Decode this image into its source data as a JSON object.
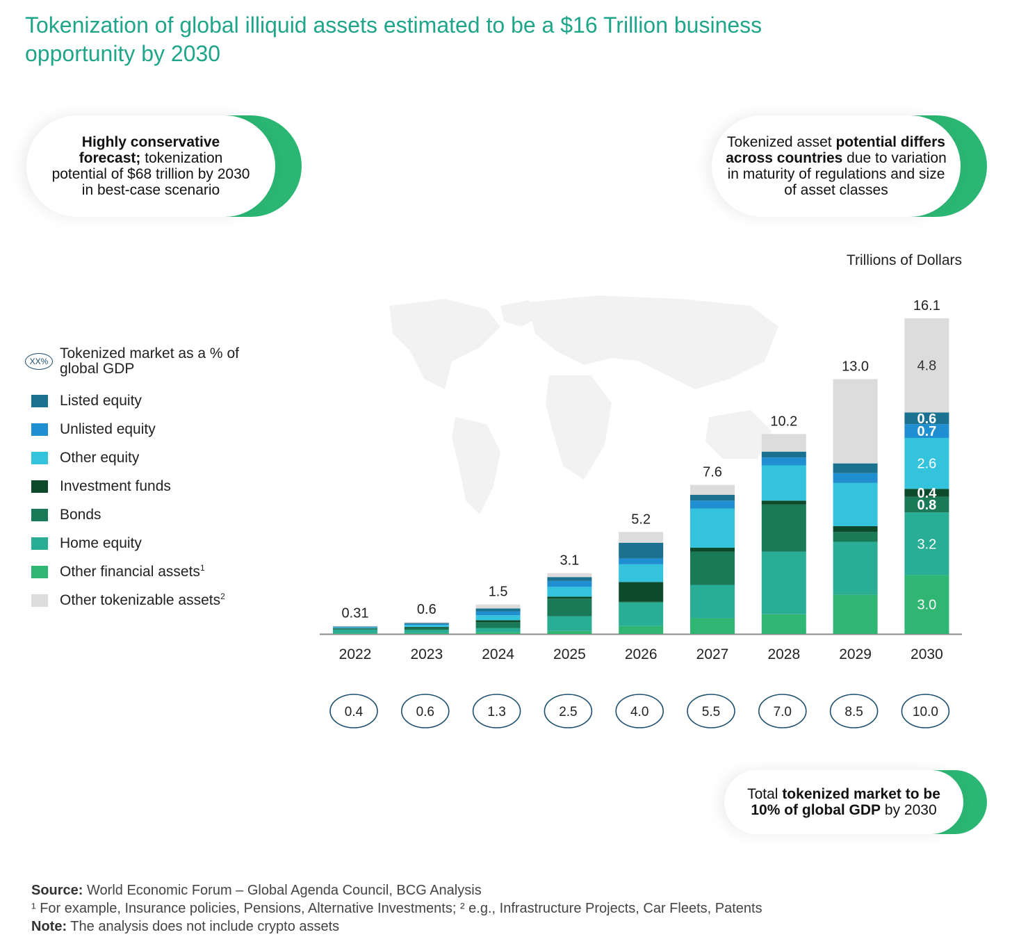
{
  "title": "Tokenization of global illiquid assets estimated to be a $16 Trillion business opportunity by 2030",
  "callouts": {
    "left": {
      "bold": "Highly conservative forecast;",
      "rest": " tokenization potential of $68 trillion by 2030 in best-case scenario"
    },
    "right": {
      "part1": "Tokenized asset ",
      "bold1": "potential differs across countries",
      "part2": " due to variation in maturity of regulations and size of asset classes"
    },
    "bottom": {
      "part1": "Total ",
      "bold1": "tokenized market to be 10% of global GDP",
      "part2": " by 2030"
    }
  },
  "legend": {
    "gdp_oval": "XX%",
    "gdp_label": "Tokenized market as a % of global GDP",
    "items": [
      {
        "label": "Listed equity",
        "sup": "",
        "color": "#1b7290"
      },
      {
        "label": "Unlisted equity",
        "sup": "",
        "color": "#1f8fd1"
      },
      {
        "label": "Other equity",
        "sup": "",
        "color": "#34c3dd"
      },
      {
        "label": "Investment funds",
        "sup": "",
        "color": "#0d4a2b"
      },
      {
        "label": "Bonds",
        "sup": "",
        "color": "#1a7a57"
      },
      {
        "label": "Home equity",
        "sup": "",
        "color": "#2aad95"
      },
      {
        "label": "Other financial assets",
        "sup": "1",
        "color": "#2fb673"
      },
      {
        "label": "Other tokenizable assets",
        "sup": "2",
        "color": "#dcdcdc"
      }
    ]
  },
  "unit_label": "Trillions of Dollars",
  "chart_data": {
    "type": "bar",
    "stacked": true,
    "categories": [
      "2022",
      "2023",
      "2024",
      "2025",
      "2026",
      "2027",
      "2028",
      "2029",
      "2030"
    ],
    "totals": [
      0.31,
      0.6,
      1.5,
      3.1,
      5.2,
      7.6,
      10.2,
      13.0,
      16.1
    ],
    "total_labels": [
      "0.31",
      "0.6",
      "1.5",
      "3.1",
      "5.2",
      "7.6",
      "10.2",
      "13.0",
      "16.1"
    ],
    "gdp_percent": [
      "0.4",
      "0.6",
      "1.3",
      "2.5",
      "4.0",
      "5.5",
      "7.0",
      "8.5",
      "10.0"
    ],
    "series": [
      {
        "name": "Other financial assets",
        "color": "#2fb673",
        "values": [
          0.02,
          0.05,
          0.1,
          0.15,
          0.4,
          0.8,
          1.0,
          2.0,
          3.0
        ]
      },
      {
        "name": "Home equity",
        "color": "#2aad95",
        "values": [
          0.2,
          0.15,
          0.2,
          0.75,
          1.2,
          1.7,
          3.2,
          2.7,
          3.2
        ]
      },
      {
        "name": "Bonds",
        "color": "#1a7a57",
        "values": [
          0.03,
          0.1,
          0.3,
          0.9,
          0.05,
          1.7,
          2.4,
          0.5,
          0.8
        ]
      },
      {
        "name": "Investment funds",
        "color": "#0d4a2b",
        "values": [
          0.01,
          0.05,
          0.1,
          0.1,
          1.0,
          0.2,
          0.2,
          0.3,
          0.4
        ]
      },
      {
        "name": "Other equity",
        "color": "#34c3dd",
        "values": [
          0.03,
          0.1,
          0.25,
          0.5,
          0.9,
          2.0,
          1.8,
          2.2,
          2.6
        ]
      },
      {
        "name": "Unlisted equity",
        "color": "#1f8fd1",
        "values": [
          0.01,
          0.05,
          0.2,
          0.3,
          0.3,
          0.4,
          0.4,
          0.5,
          0.7
        ]
      },
      {
        "name": "Listed equity",
        "color": "#1b7290",
        "values": [
          0.005,
          0.05,
          0.15,
          0.2,
          0.8,
          0.3,
          0.3,
          0.5,
          0.6
        ]
      },
      {
        "name": "Other tokenizable assets",
        "color": "#dcdcdc",
        "values": [
          0.005,
          0.05,
          0.2,
          0.2,
          0.55,
          0.5,
          0.9,
          4.3,
          4.8
        ]
      }
    ],
    "segment_labels_2030": [
      {
        "series": "Other financial assets",
        "label": "3.0"
      },
      {
        "series": "Home equity",
        "label": "3.2"
      },
      {
        "series": "Bonds",
        "label": "0.8"
      },
      {
        "series": "Investment funds",
        "label": "0.4"
      },
      {
        "series": "Other equity",
        "label": "2.6"
      },
      {
        "series": "Unlisted equity",
        "label": "0.7"
      },
      {
        "series": "Listed equity",
        "label": "0.6"
      },
      {
        "series": "Other tokenizable assets",
        "label": "4.8"
      }
    ],
    "ylim": [
      0,
      16.1
    ]
  },
  "source": {
    "label": "Source:",
    "text": " World Economic Forum – Global Agenda Council, BCG Analysis",
    "footnote": "¹ For example, Insurance policies, Pensions, Alternative Investments; ² e.g., Infrastructure Projects, Car Fleets, Patents",
    "note_label": "Note:",
    "note_text": " The analysis does not include crypto assets"
  }
}
